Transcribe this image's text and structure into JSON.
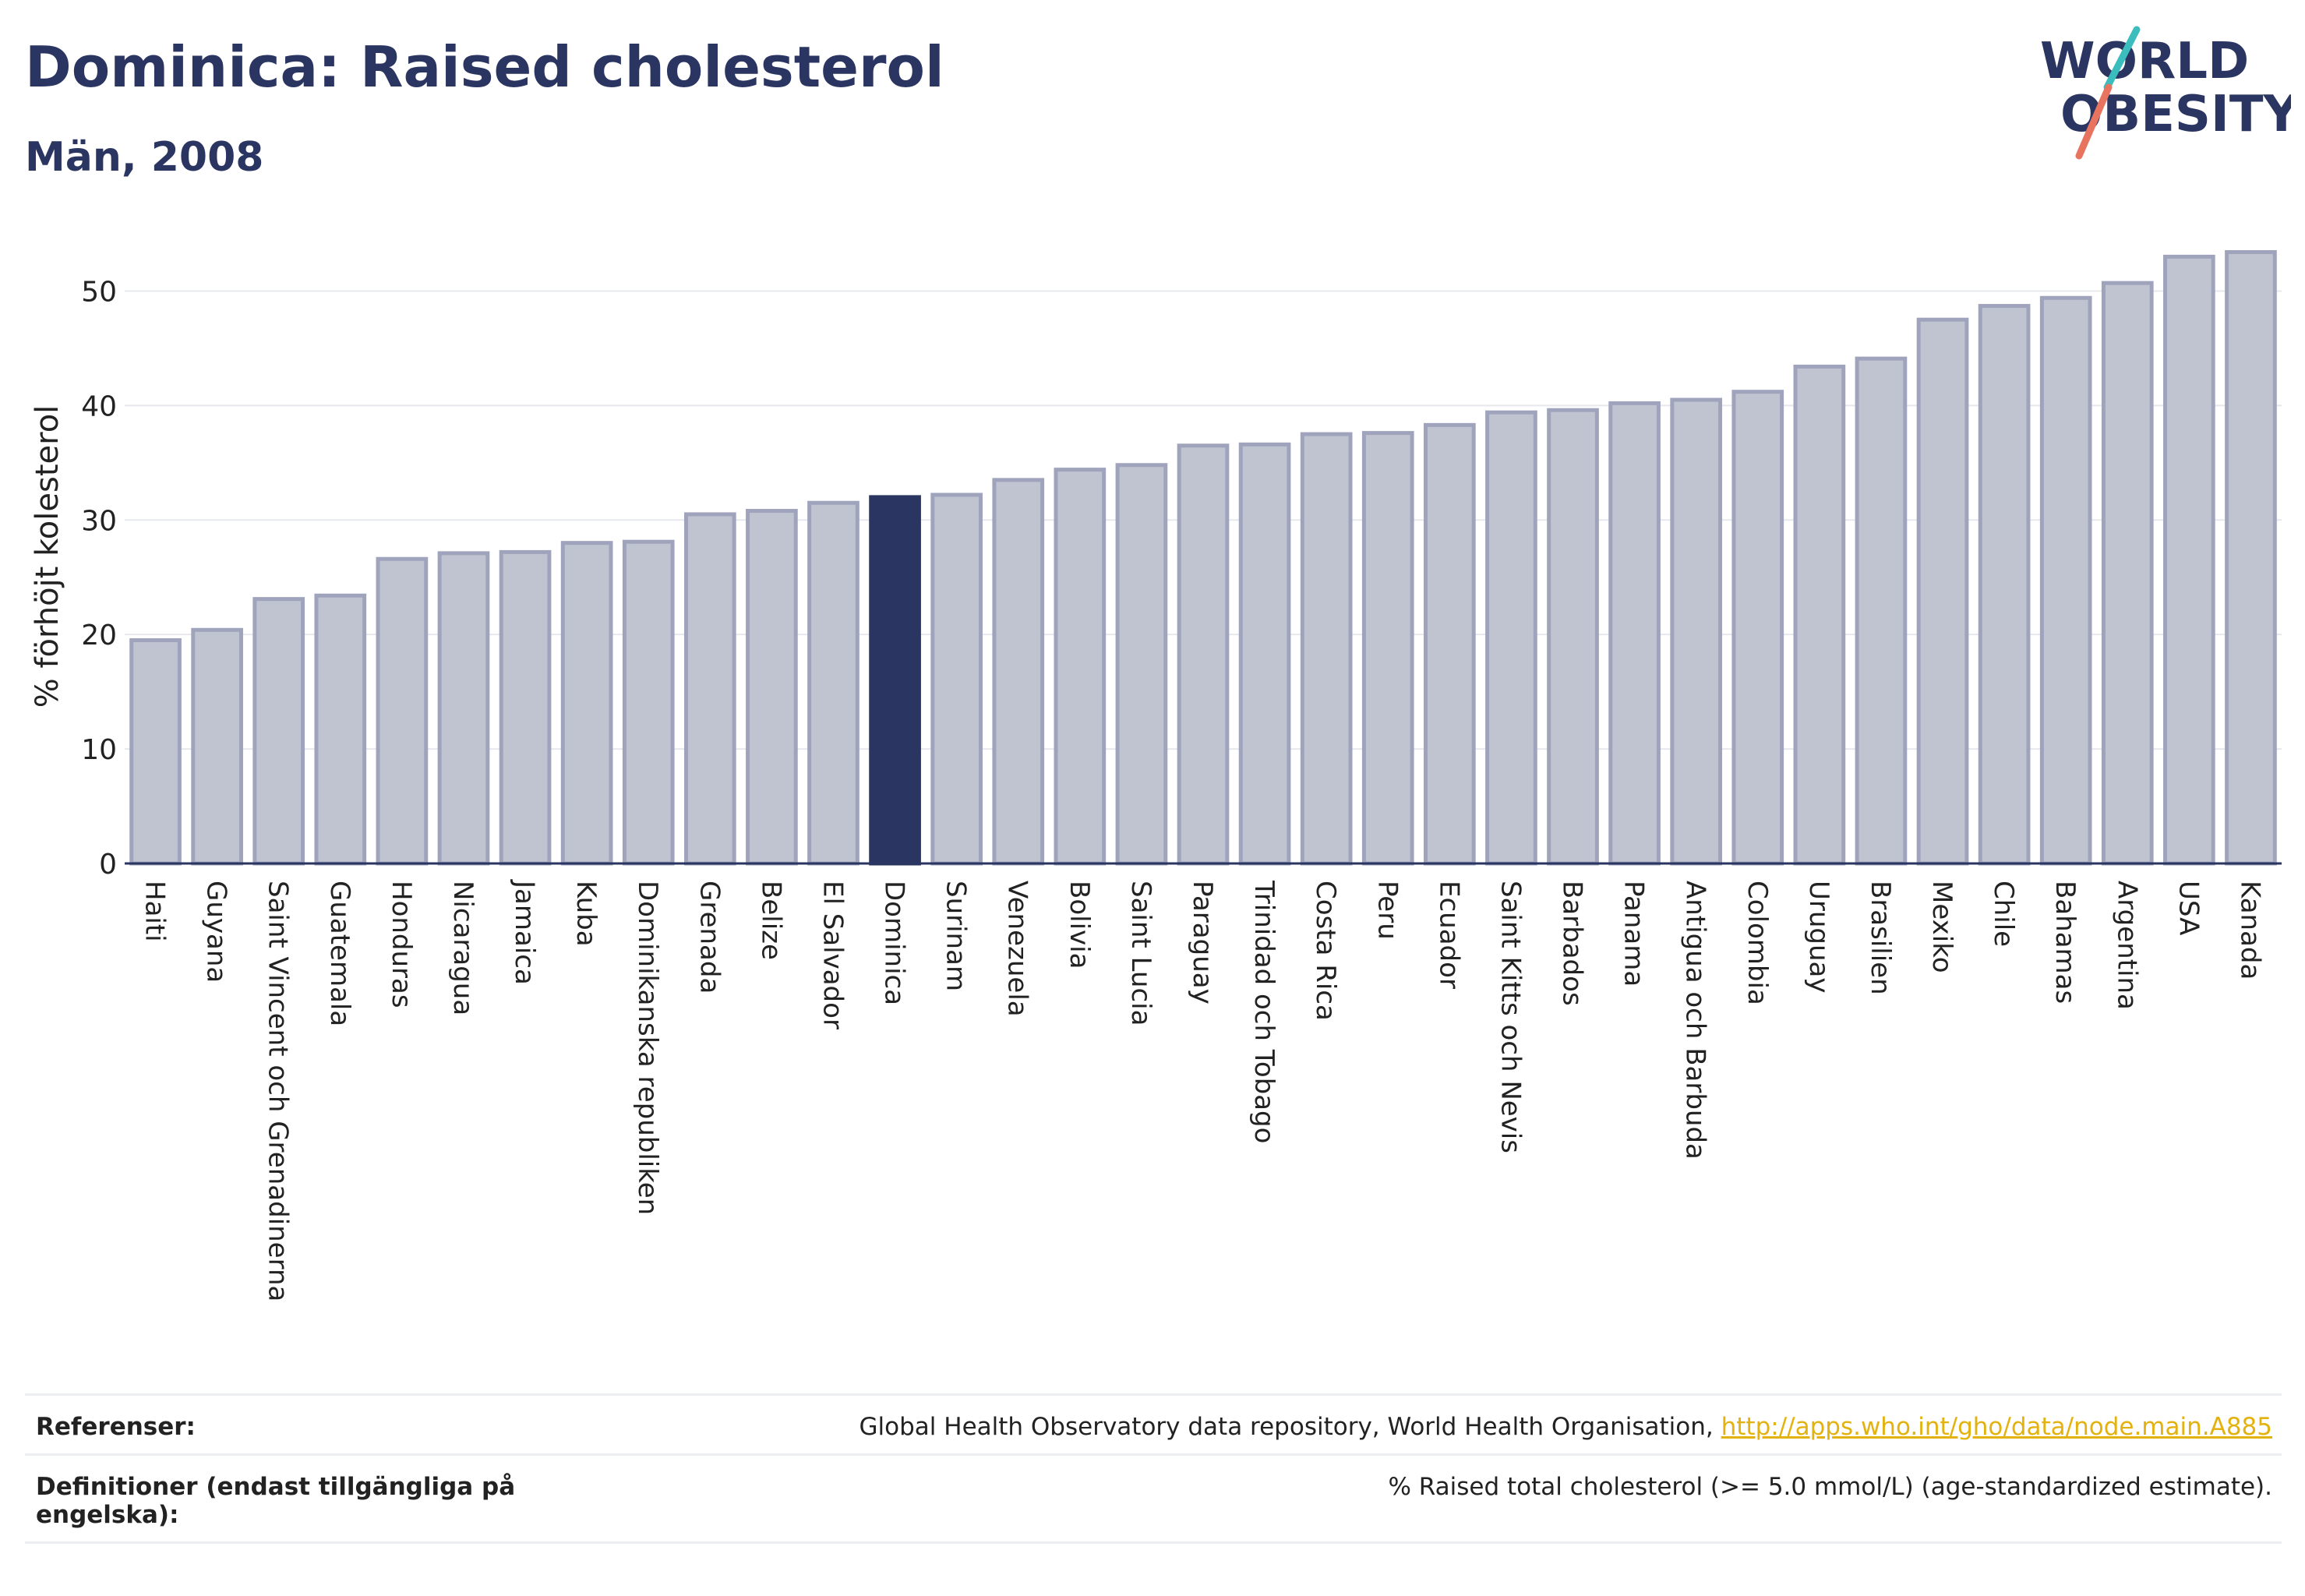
{
  "header": {
    "title": "Dominica: Raised cholesterol",
    "subtitle": "Män, 2008"
  },
  "logo": {
    "line1": "WORLD",
    "line2": "OBESITY"
  },
  "colors": {
    "bar": "#c0c3d0",
    "bar_stroke": "#9fa4bc",
    "highlight": "#2b3561",
    "text": "#2b3561",
    "link": "#e3b20e",
    "logo_slash_teal": "#3bbdbd",
    "logo_slash_coral": "#e8735f"
  },
  "chart_data": {
    "type": "bar",
    "ylabel": "% förhöjt kolesterol",
    "xlabel": "",
    "ylim": [
      0,
      55
    ],
    "yticks": [
      0,
      10,
      20,
      30,
      40,
      50
    ],
    "grid": true,
    "highlight": "Dominica",
    "categories": [
      "Haiti",
      "Guyana",
      "Saint Vincent och Grenadinerna",
      "Guatemala",
      "Honduras",
      "Nicaragua",
      "Jamaica",
      "Kuba",
      "Dominikanska republiken",
      "Grenada",
      "Belize",
      "El Salvador",
      "Dominica",
      "Surinam",
      "Venezuela",
      "Bolivia",
      "Saint Lucia",
      "Paraguay",
      "Trinidad och Tobago",
      "Costa Rica",
      "Peru",
      "Ecuador",
      "Saint Kitts och Nevis",
      "Barbados",
      "Panama",
      "Antigua och Barbuda",
      "Colombia",
      "Uruguay",
      "Brasilien",
      "Mexiko",
      "Chile",
      "Bahamas",
      "Argentina",
      "USA",
      "Kanada"
    ],
    "values": [
      19.5,
      20.4,
      23.1,
      23.4,
      26.6,
      27.1,
      27.2,
      28.0,
      28.1,
      30.5,
      30.8,
      31.5,
      32.0,
      32.2,
      33.5,
      34.4,
      34.8,
      36.5,
      36.6,
      37.5,
      37.6,
      38.3,
      39.4,
      39.6,
      40.2,
      40.5,
      41.2,
      43.4,
      44.1,
      47.5,
      48.7,
      49.4,
      50.7,
      53.0,
      53.4
    ]
  },
  "footer": {
    "references_label": "Referenser:",
    "references_text": "Global Health Observatory data repository, World Health Organisation, ",
    "references_link": "http://apps.who.int/gho/data/node.main.A885",
    "definitions_label": "Definitioner (endast tillgängliga på engelska):",
    "definitions_text": "% Raised total cholesterol (>= 5.0 mmol/L) (age-standardized estimate)."
  }
}
